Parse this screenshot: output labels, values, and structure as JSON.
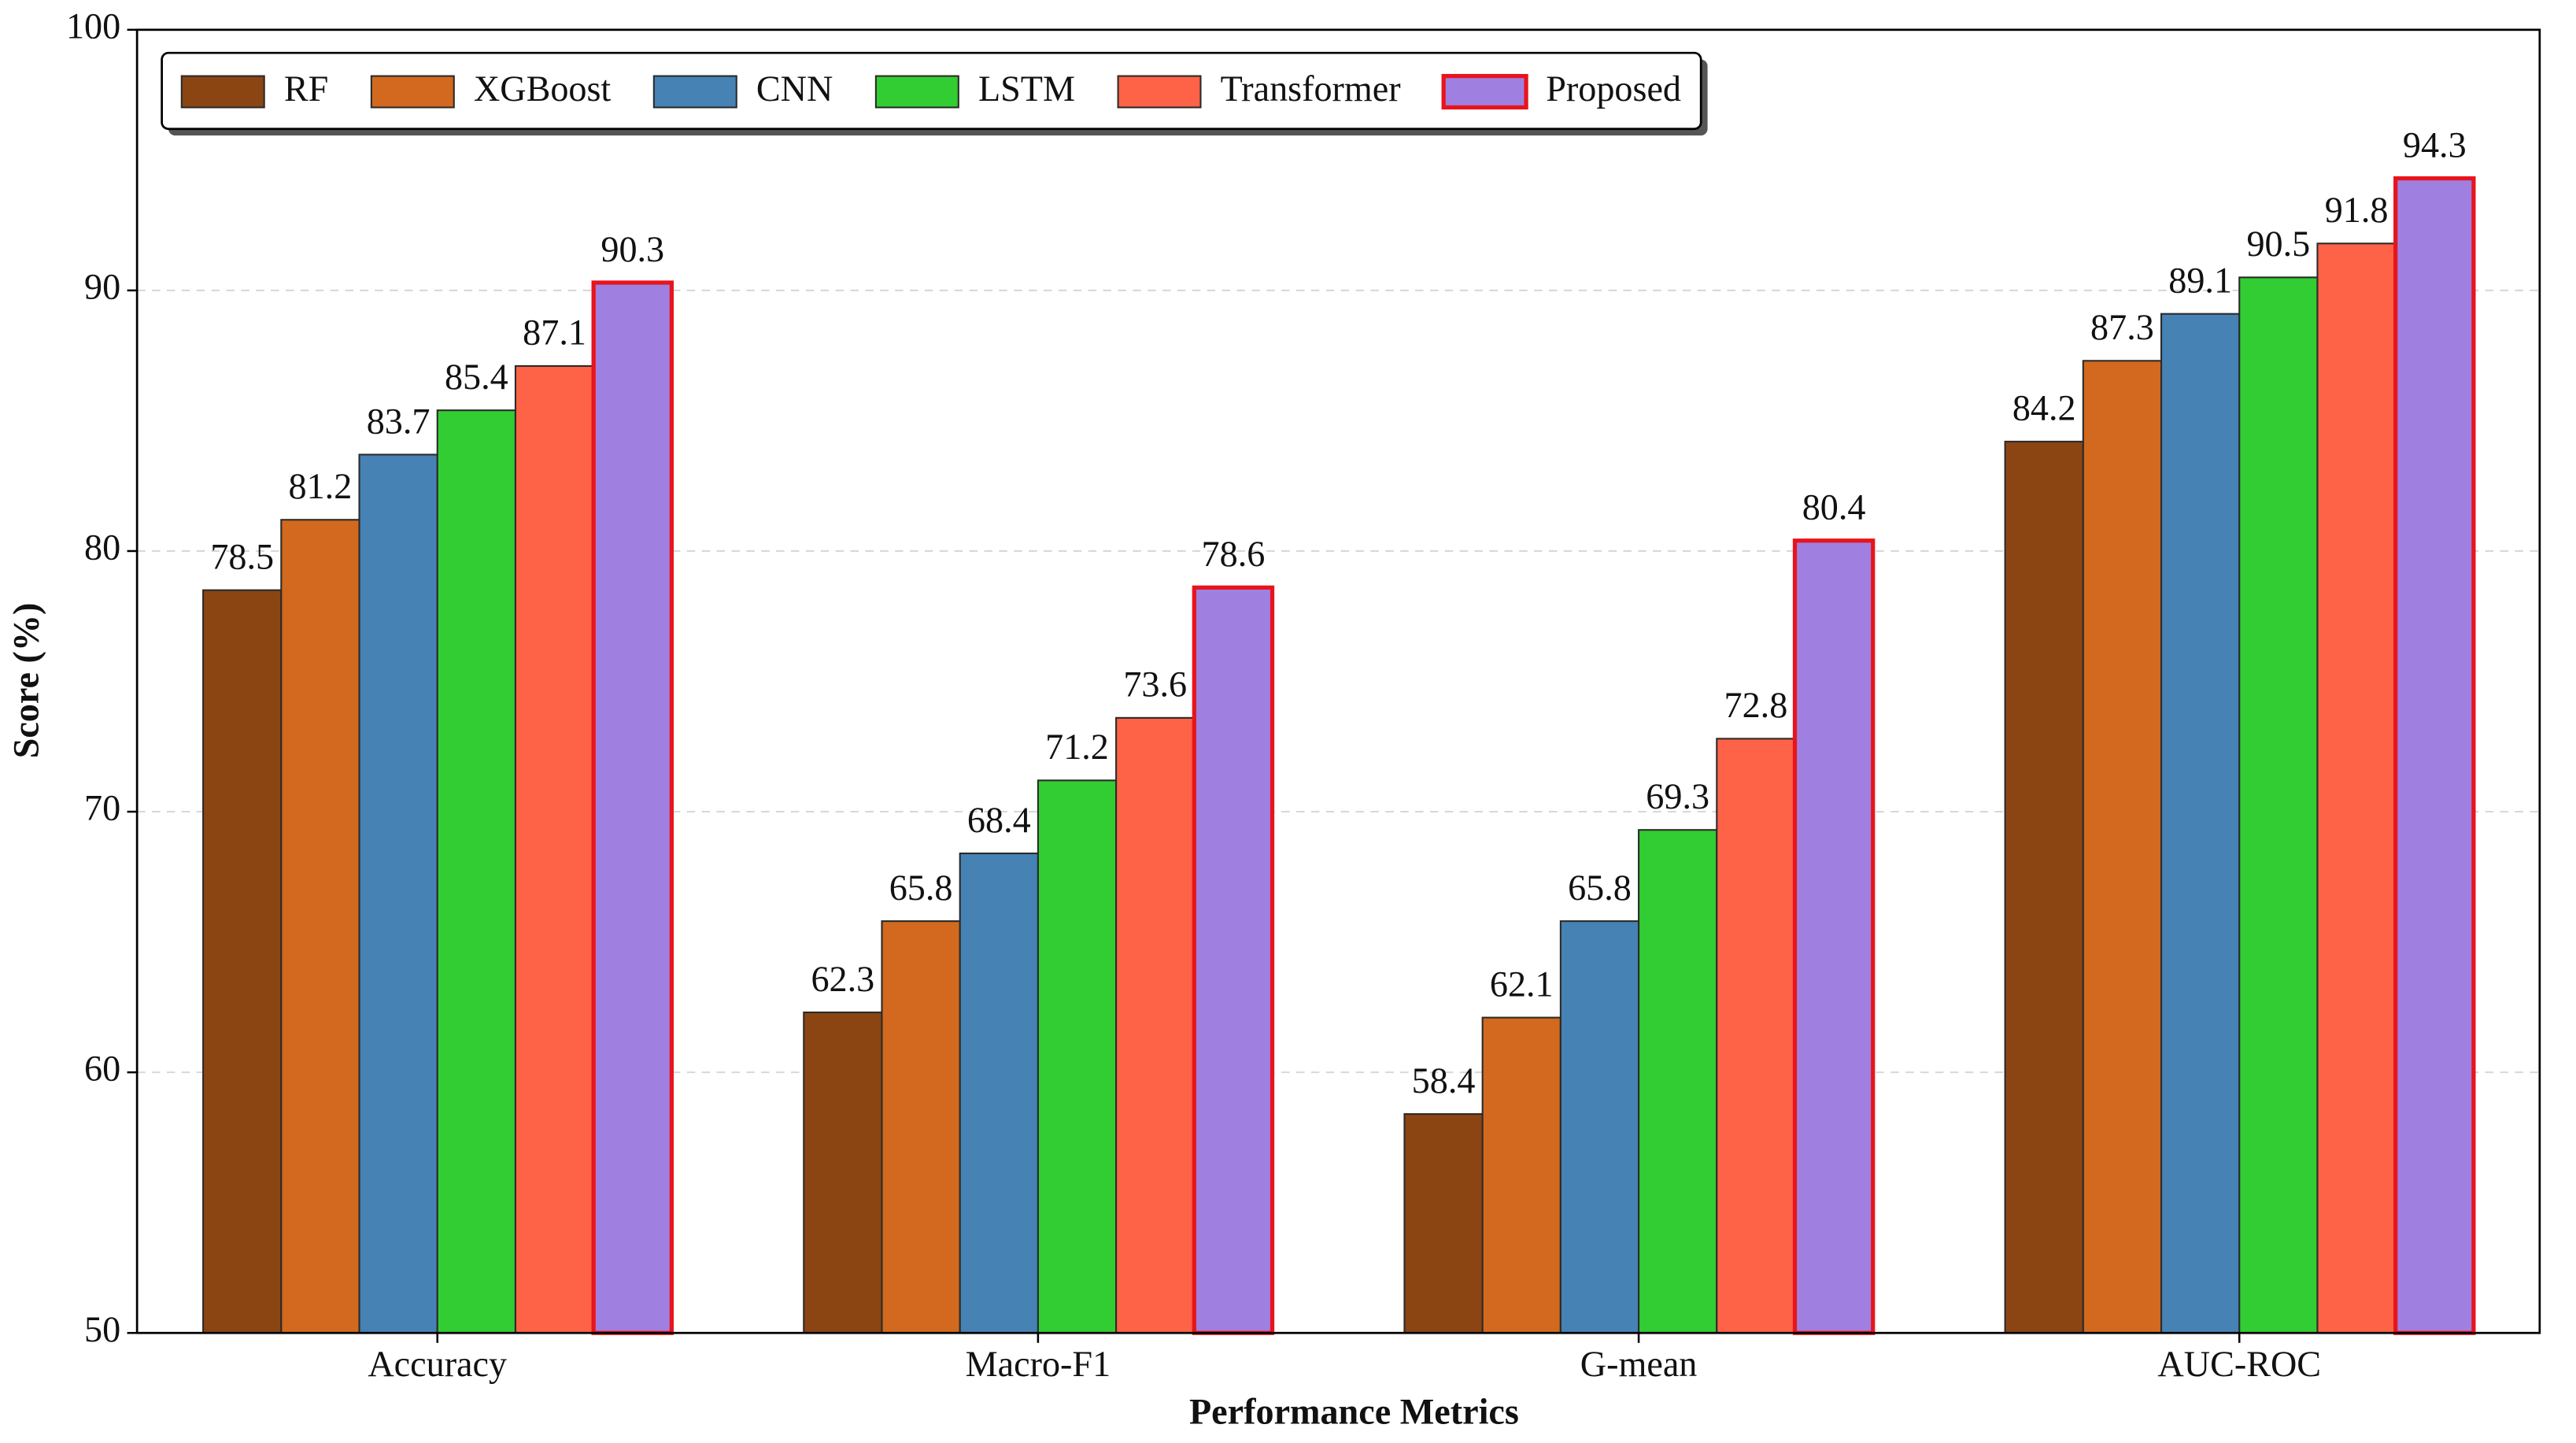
{
  "chart_data": {
    "type": "bar",
    "xlabel": "Performance Metrics",
    "ylabel": "Score (%)",
    "categories": [
      "Accuracy",
      "Macro-F1",
      "G-mean",
      "AUC-ROC"
    ],
    "series": [
      {
        "name": "RF",
        "color": "#8b4513",
        "edgecolor": "#2b2b2b",
        "values": [
          78.5,
          62.3,
          58.4,
          84.2
        ]
      },
      {
        "name": "XGBoost",
        "color": "#d2691e",
        "edgecolor": "#2b2b2b",
        "values": [
          81.2,
          65.8,
          62.1,
          87.3
        ]
      },
      {
        "name": "CNN",
        "color": "#4682b4",
        "edgecolor": "#2b2b2b",
        "values": [
          83.7,
          68.4,
          65.8,
          89.1
        ]
      },
      {
        "name": "LSTM",
        "color": "#32cd32",
        "edgecolor": "#2b2b2b",
        "values": [
          85.4,
          71.2,
          69.3,
          90.5
        ]
      },
      {
        "name": "Transformer",
        "color": "#ff6347",
        "edgecolor": "#2b2b2b",
        "values": [
          87.1,
          73.6,
          72.8,
          91.8
        ]
      },
      {
        "name": "Proposed",
        "color": "#9f80e0",
        "edgecolor": "#e8141c",
        "values": [
          90.3,
          78.6,
          80.4,
          94.3
        ]
      }
    ],
    "ylim": [
      50,
      100
    ],
    "yticks": [
      50,
      60,
      70,
      80,
      90,
      100
    ],
    "grid": true,
    "legend": "upper-left"
  }
}
